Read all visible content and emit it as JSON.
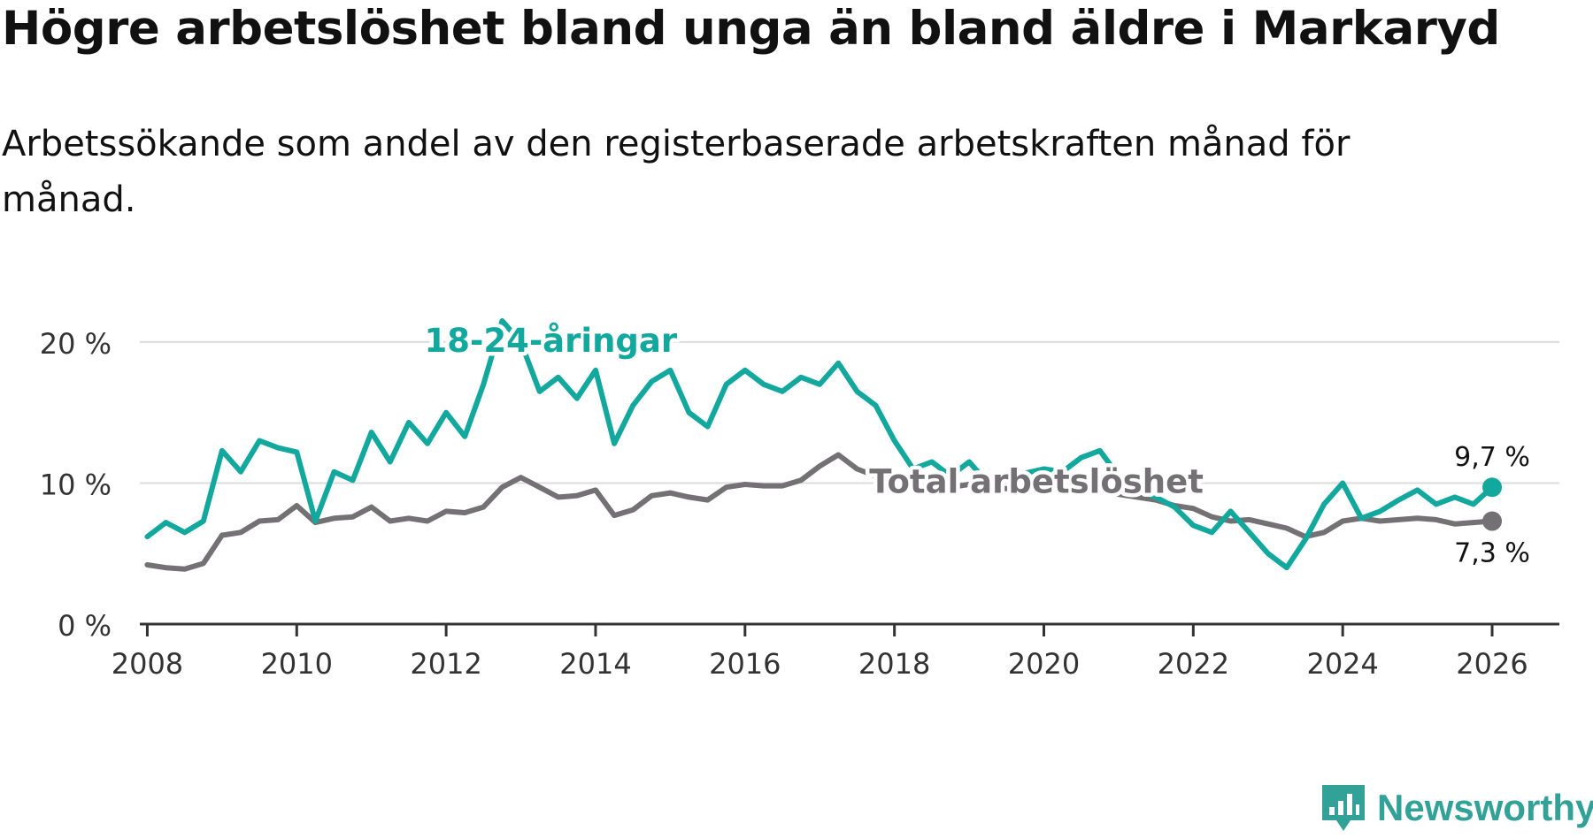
{
  "chart_data": {
    "type": "line",
    "title": "Högre arbetslöshet bland unga än bland äldre i Markaryd",
    "subtitle": "Arbetssökande som andel av den registerbaserade arbetskraften månad för månad.",
    "xlabel": "",
    "ylabel": "",
    "ylim": [
      0,
      22
    ],
    "xlim": [
      2007.9,
      2026.9
    ],
    "grid": true,
    "y_ticks": [
      {
        "value": 0,
        "label": "0 %"
      },
      {
        "value": 10,
        "label": "10 %"
      },
      {
        "value": 20,
        "label": "20 %"
      }
    ],
    "x_ticks": [
      {
        "value": 2008,
        "label": "2008"
      },
      {
        "value": 2010,
        "label": "2010"
      },
      {
        "value": 2012,
        "label": "2012"
      },
      {
        "value": 2014,
        "label": "2014"
      },
      {
        "value": 2016,
        "label": "2016"
      },
      {
        "value": 2018,
        "label": "2018"
      },
      {
        "value": 2020,
        "label": "2020"
      },
      {
        "value": 2022,
        "label": "2022"
      },
      {
        "value": 2024,
        "label": "2024"
      },
      {
        "value": 2026,
        "label": "2026"
      }
    ],
    "series": [
      {
        "name": "18-24-åringar",
        "label": "18-24-åringar",
        "color": "#13a89e",
        "end_label": "9,7 %",
        "x": [
          2008.0,
          2008.25,
          2008.5,
          2008.75,
          2009.0,
          2009.25,
          2009.5,
          2009.75,
          2010.0,
          2010.25,
          2010.5,
          2010.75,
          2011.0,
          2011.25,
          2011.5,
          2011.75,
          2012.0,
          2012.25,
          2012.5,
          2012.75,
          2013.0,
          2013.25,
          2013.5,
          2013.75,
          2014.0,
          2014.25,
          2014.5,
          2014.75,
          2015.0,
          2015.25,
          2015.5,
          2015.75,
          2016.0,
          2016.25,
          2016.5,
          2016.75,
          2017.0,
          2017.25,
          2017.5,
          2017.75,
          2018.0,
          2018.25,
          2018.5,
          2018.75,
          2019.0,
          2019.25,
          2019.5,
          2019.75,
          2020.0,
          2020.25,
          2020.5,
          2020.75,
          2021.0,
          2021.25,
          2021.5,
          2021.75,
          2022.0,
          2022.25,
          2022.5,
          2022.75,
          2023.0,
          2023.25,
          2023.5,
          2023.75,
          2024.0,
          2024.25,
          2024.5,
          2024.75,
          2025.0,
          2025.25,
          2025.5,
          2025.75,
          2026.0
        ],
        "values": [
          6.2,
          7.2,
          6.5,
          7.3,
          12.3,
          10.8,
          13.0,
          12.5,
          12.2,
          7.3,
          10.8,
          10.2,
          13.6,
          11.5,
          14.3,
          12.8,
          15.0,
          13.3,
          17.0,
          21.5,
          20.0,
          16.5,
          17.5,
          16.0,
          18.0,
          12.8,
          15.5,
          17.2,
          18.0,
          15.0,
          14.0,
          17.0,
          18.0,
          17.0,
          16.5,
          17.5,
          17.0,
          18.5,
          16.5,
          15.5,
          13.0,
          11.0,
          11.5,
          10.5,
          11.5,
          10.0,
          10.3,
          10.7,
          11.0,
          10.8,
          11.8,
          12.3,
          10.5,
          9.5,
          9.0,
          8.3,
          7.0,
          6.5,
          8.0,
          6.5,
          5.0,
          4.0,
          6.0,
          8.5,
          10.0,
          7.5,
          8.0,
          8.8,
          9.5,
          8.5,
          9.0,
          8.5,
          9.7
        ]
      },
      {
        "name": "Total arbetslöshet",
        "label": "Total arbetslöshet",
        "color": "#747174",
        "end_label": "7,3 %",
        "x": [
          2008.0,
          2008.25,
          2008.5,
          2008.75,
          2009.0,
          2009.25,
          2009.5,
          2009.75,
          2010.0,
          2010.25,
          2010.5,
          2010.75,
          2011.0,
          2011.25,
          2011.5,
          2011.75,
          2012.0,
          2012.25,
          2012.5,
          2012.75,
          2013.0,
          2013.25,
          2013.5,
          2013.75,
          2014.0,
          2014.25,
          2014.5,
          2014.75,
          2015.0,
          2015.25,
          2015.5,
          2015.75,
          2016.0,
          2016.25,
          2016.5,
          2016.75,
          2017.0,
          2017.25,
          2017.5,
          2017.75,
          2018.0,
          2018.25,
          2018.5,
          2018.75,
          2019.0,
          2019.25,
          2019.5,
          2019.75,
          2020.0,
          2020.25,
          2020.5,
          2020.75,
          2021.0,
          2021.25,
          2021.5,
          2021.75,
          2022.0,
          2022.25,
          2022.5,
          2022.75,
          2023.0,
          2023.25,
          2023.5,
          2023.75,
          2024.0,
          2024.25,
          2024.5,
          2024.75,
          2025.0,
          2025.25,
          2025.5,
          2025.75,
          2026.0
        ],
        "values": [
          4.2,
          4.0,
          3.9,
          4.3,
          6.3,
          6.5,
          7.3,
          7.4,
          8.4,
          7.2,
          7.5,
          7.6,
          8.3,
          7.3,
          7.5,
          7.3,
          8.0,
          7.9,
          8.3,
          9.7,
          10.4,
          9.7,
          9.0,
          9.1,
          9.5,
          7.7,
          8.1,
          9.1,
          9.3,
          9.0,
          8.8,
          9.7,
          9.9,
          9.8,
          9.8,
          10.2,
          11.2,
          12.0,
          11.0,
          10.5,
          10.0,
          9.7,
          9.3,
          9.7,
          9.9,
          9.6,
          9.6,
          9.6,
          9.6,
          9.7,
          9.6,
          9.6,
          9.2,
          9.0,
          8.8,
          8.4,
          8.2,
          7.6,
          7.3,
          7.4,
          7.1,
          6.8,
          6.2,
          6.5,
          7.3,
          7.5,
          7.3,
          7.4,
          7.5,
          7.4,
          7.1,
          7.2,
          7.3
        ]
      }
    ]
  },
  "branding": {
    "logo_text": "Newsworthy",
    "logo_icon": "newsworthy-chart-icon",
    "color": "#32a197"
  }
}
